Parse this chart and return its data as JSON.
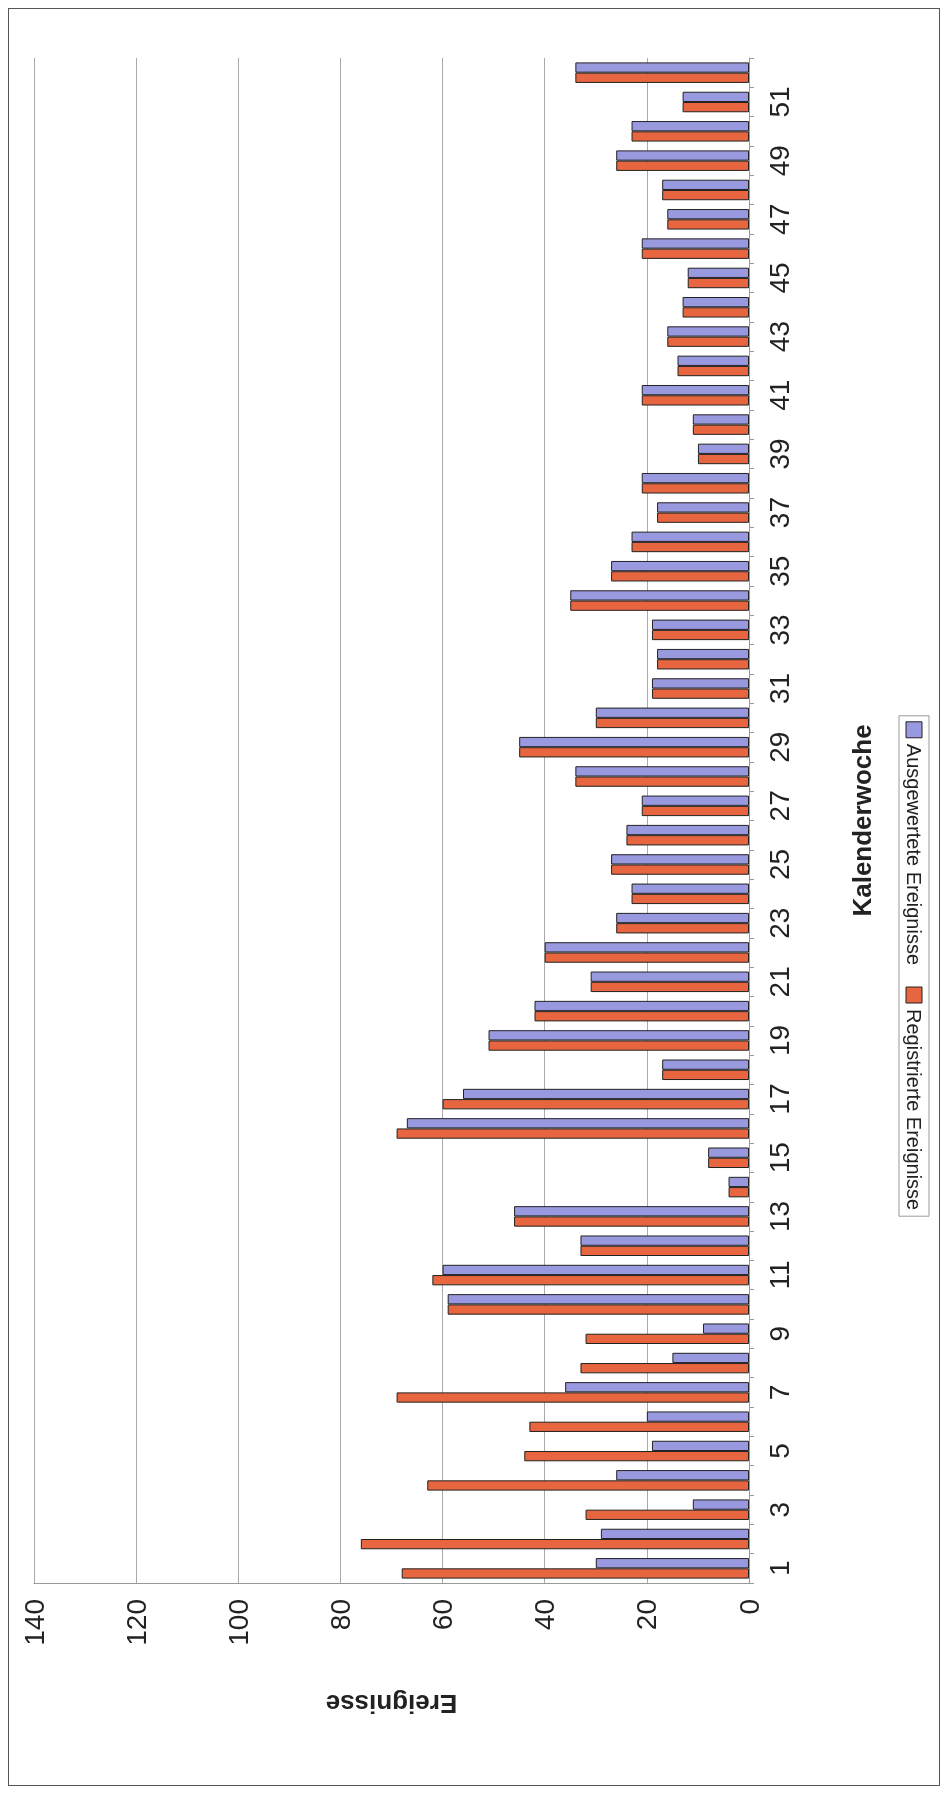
{
  "chart_data": {
    "type": "bar",
    "orientation": "horizontal",
    "xlabel": "Ereignisse",
    "ylabel": "Kalenderwoche",
    "categories": [
      null,
      "51",
      null,
      "49",
      null,
      "47",
      null,
      "45",
      null,
      "43",
      null,
      "41",
      null,
      "39",
      null,
      "37",
      null,
      "35",
      null,
      "33",
      null,
      "31",
      null,
      "29",
      null,
      "27",
      null,
      "25",
      null,
      "23",
      null,
      "21",
      null,
      "19",
      null,
      "17",
      null,
      "15",
      null,
      "13",
      null,
      "11",
      null,
      "9",
      null,
      "7",
      null,
      "5",
      null,
      "3",
      null,
      "1"
    ],
    "series": [
      {
        "name": "Registrierte Ereignisse",
        "color": "#e8663f",
        "values": [
          34,
          13,
          23,
          26,
          17,
          16,
          21,
          12,
          13,
          16,
          14,
          21,
          11,
          10,
          21,
          18,
          23,
          27,
          35,
          19,
          18,
          19,
          30,
          45,
          34,
          21,
          24,
          27,
          23,
          26,
          40,
          31,
          42,
          51,
          17,
          60,
          69,
          8,
          4,
          46,
          33,
          62,
          59,
          32,
          33,
          69,
          43,
          44,
          63,
          32,
          76,
          68
        ]
      },
      {
        "name": "Ausgewertete Ereignisse",
        "color": "#9999e0",
        "values": [
          34,
          13,
          23,
          26,
          17,
          16,
          21,
          12,
          13,
          16,
          14,
          21,
          11,
          10,
          21,
          18,
          23,
          27,
          35,
          19,
          18,
          19,
          30,
          45,
          34,
          21,
          24,
          27,
          23,
          26,
          40,
          31,
          42,
          51,
          17,
          56,
          67,
          8,
          4,
          46,
          33,
          60,
          59,
          9,
          15,
          36,
          20,
          19,
          26,
          11,
          29,
          30
        ]
      }
    ],
    "xlim": [
      140,
      0
    ],
    "xticks": [
      0,
      20,
      40,
      60,
      80,
      100,
      120,
      140
    ],
    "grid": "x",
    "legend": "right"
  }
}
